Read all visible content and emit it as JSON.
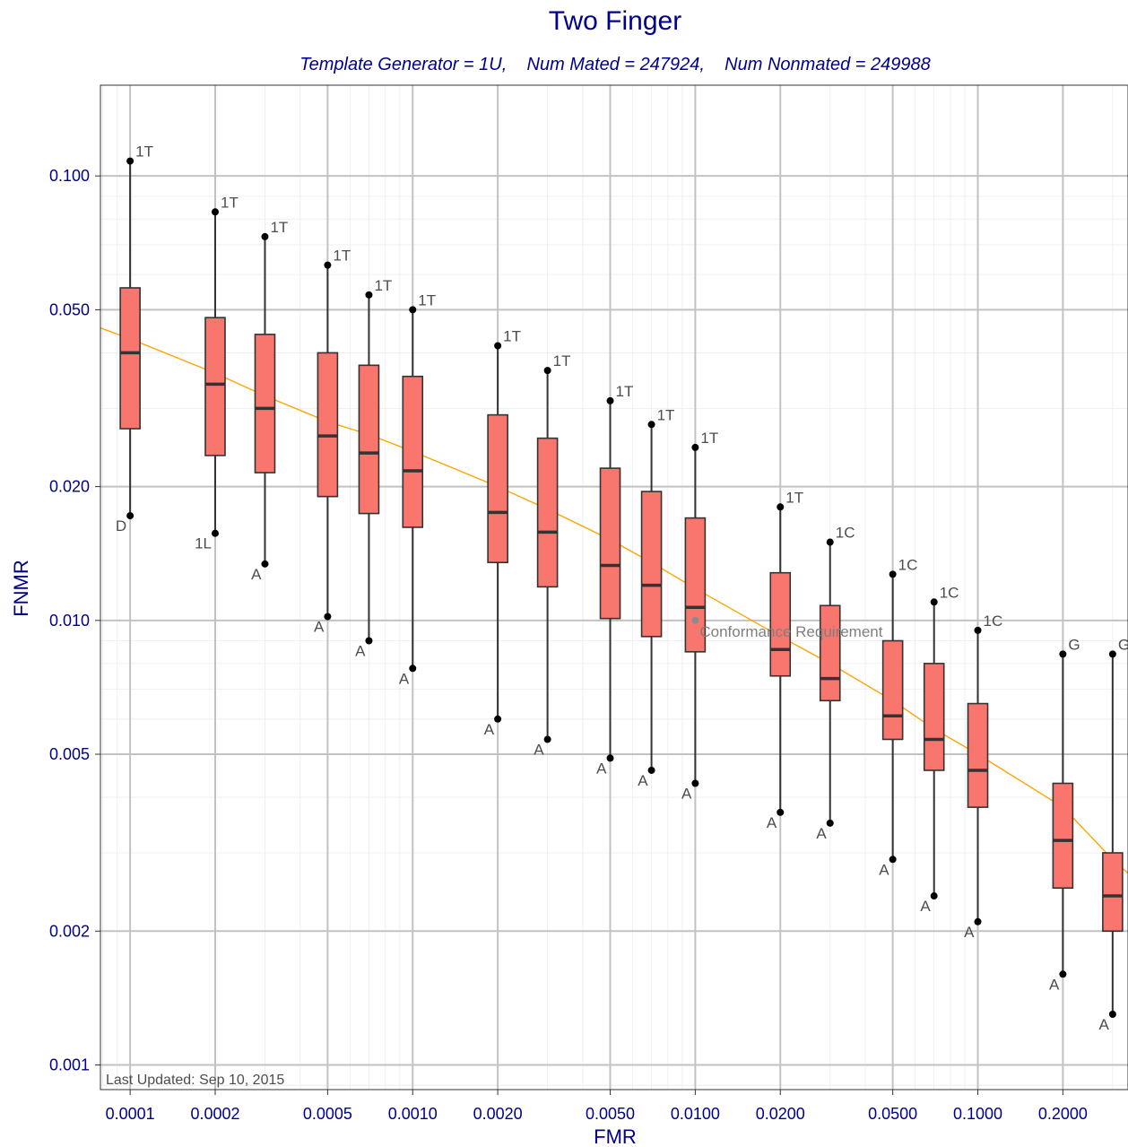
{
  "chart_data": {
    "type": "boxplot",
    "title": "Two Finger",
    "subtitle": "Template Generator = 1U,    Num Mated = 247924,    Num Nonmated = 249988",
    "xlabel": "FMR",
    "ylabel": "FNMR",
    "x_scale": "log",
    "y_scale": "log",
    "xlim": [
      7.85e-05,
      0.34
    ],
    "ylim": [
      0.00088,
      0.16
    ],
    "x_ticks": [
      "0.0001",
      "0.0002",
      "0.0005",
      "0.0010",
      "0.0020",
      "0.0050",
      "0.0100",
      "0.0200",
      "0.0500",
      "0.1000",
      "0.2000"
    ],
    "y_ticks": [
      "0.001",
      "0.002",
      "0.005",
      "0.010",
      "0.020",
      "0.050",
      "0.100"
    ],
    "grid": true,
    "footnote": "Last Updated: Sep 10, 2015",
    "box_color": "#f8766d",
    "line_color": "#ffa500",
    "boxes": [
      {
        "fmr": 0.0001,
        "min": 0.0172,
        "q1": 0.027,
        "median": 0.04,
        "q3": 0.056,
        "max": 0.108,
        "max_label": "1T",
        "min_label": "D"
      },
      {
        "fmr": 0.0002,
        "min": 0.0157,
        "q1": 0.0235,
        "median": 0.034,
        "q3": 0.048,
        "max": 0.083,
        "max_label": "1T",
        "min_label": "1L"
      },
      {
        "fmr": 0.0003,
        "min": 0.0134,
        "q1": 0.0215,
        "median": 0.03,
        "q3": 0.044,
        "max": 0.073,
        "max_label": "1T",
        "min_label": "A"
      },
      {
        "fmr": 0.0005,
        "min": 0.0102,
        "q1": 0.019,
        "median": 0.026,
        "q3": 0.04,
        "max": 0.063,
        "max_label": "1T",
        "min_label": "A"
      },
      {
        "fmr": 0.0007,
        "min": 0.009,
        "q1": 0.0174,
        "median": 0.0238,
        "q3": 0.0375,
        "max": 0.054,
        "max_label": "1T",
        "min_label": "A"
      },
      {
        "fmr": 0.001,
        "min": 0.0078,
        "q1": 0.0162,
        "median": 0.0217,
        "q3": 0.0354,
        "max": 0.05,
        "max_label": "1T",
        "min_label": "A"
      },
      {
        "fmr": 0.002,
        "min": 0.006,
        "q1": 0.0135,
        "median": 0.0175,
        "q3": 0.029,
        "max": 0.0415,
        "max_label": "1T",
        "min_label": "A"
      },
      {
        "fmr": 0.003,
        "min": 0.0054,
        "q1": 0.0119,
        "median": 0.0158,
        "q3": 0.0257,
        "max": 0.0365,
        "max_label": "1T",
        "min_label": "A"
      },
      {
        "fmr": 0.005,
        "min": 0.0049,
        "q1": 0.0101,
        "median": 0.0133,
        "q3": 0.022,
        "max": 0.0312,
        "max_label": "1T",
        "min_label": "A"
      },
      {
        "fmr": 0.007,
        "min": 0.0046,
        "q1": 0.0092,
        "median": 0.012,
        "q3": 0.0195,
        "max": 0.0276,
        "max_label": "1T",
        "min_label": "A"
      },
      {
        "fmr": 0.01,
        "min": 0.0043,
        "q1": 0.0085,
        "median": 0.0107,
        "q3": 0.017,
        "max": 0.0245,
        "max_label": "1T",
        "min_label": "A"
      },
      {
        "fmr": 0.02,
        "min": 0.0037,
        "q1": 0.0075,
        "median": 0.0086,
        "q3": 0.0128,
        "max": 0.018,
        "max_label": "1T",
        "min_label": "A"
      },
      {
        "fmr": 0.03,
        "min": 0.0035,
        "q1": 0.0066,
        "median": 0.0074,
        "q3": 0.0108,
        "max": 0.015,
        "max_label": "1C",
        "min_label": "A"
      },
      {
        "fmr": 0.05,
        "min": 0.0029,
        "q1": 0.0054,
        "median": 0.0061,
        "q3": 0.009,
        "max": 0.0127,
        "max_label": "1C",
        "min_label": "A"
      },
      {
        "fmr": 0.07,
        "min": 0.0024,
        "q1": 0.0046,
        "median": 0.0054,
        "q3": 0.008,
        "max": 0.011,
        "max_label": "1C",
        "min_label": "A"
      },
      {
        "fmr": 0.1,
        "min": 0.0021,
        "q1": 0.0038,
        "median": 0.0046,
        "q3": 0.0065,
        "max": 0.0095,
        "max_label": "1C",
        "min_label": "A"
      },
      {
        "fmr": 0.2,
        "min": 0.0016,
        "q1": 0.0025,
        "median": 0.0032,
        "q3": 0.0043,
        "max": 0.0084,
        "max_label": "G",
        "min_label": "A"
      },
      {
        "fmr": 0.3,
        "min": 0.0013,
        "q1": 0.002,
        "median": 0.0024,
        "q3": 0.003,
        "max": 0.0084,
        "max_label": "G",
        "min_label": "A"
      }
    ],
    "reference_line": {
      "x": [
        7.85e-05,
        0.0001,
        0.0002,
        0.0003,
        0.0005,
        0.0007,
        0.001,
        0.002,
        0.003,
        0.005,
        0.007,
        0.01,
        0.02,
        0.03,
        0.05,
        0.07,
        0.1,
        0.2,
        0.3,
        0.34
      ],
      "y": [
        0.0455,
        0.043,
        0.036,
        0.032,
        0.028,
        0.0262,
        0.024,
        0.02,
        0.0178,
        0.0152,
        0.0135,
        0.0118,
        0.0092,
        0.008,
        0.0066,
        0.0057,
        0.005,
        0.0038,
        0.0029,
        0.0027
      ]
    },
    "conformance": {
      "fmr": 0.01,
      "fnmr": 0.01,
      "label": "Conformance Requirement"
    }
  }
}
